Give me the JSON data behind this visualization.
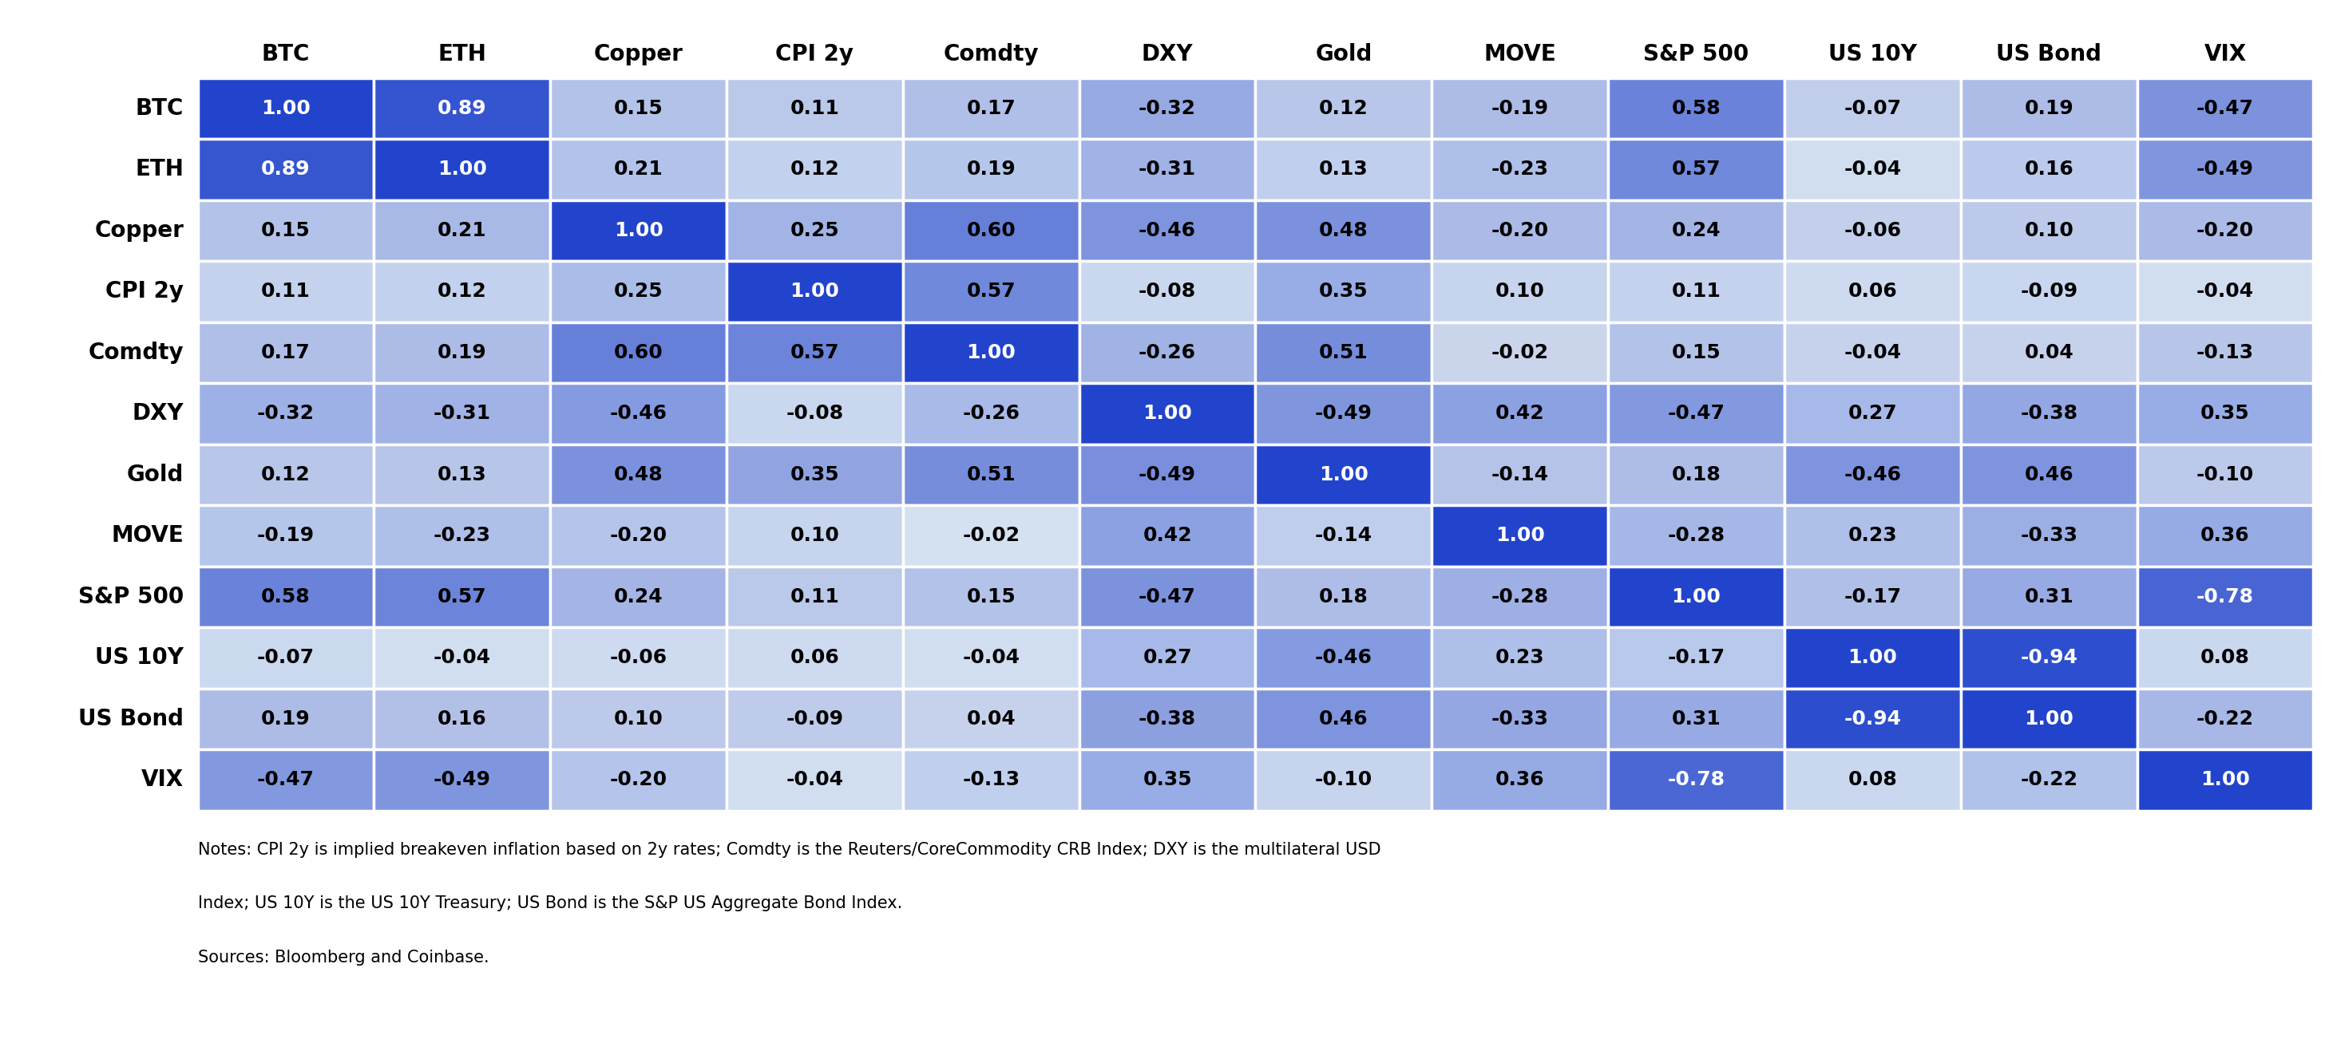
{
  "labels": [
    "BTC",
    "ETH",
    "Copper",
    "CPI 2y",
    "Comdty",
    "DXY",
    "Gold",
    "MOVE",
    "S&P 500",
    "US 10Y",
    "US Bond",
    "VIX"
  ],
  "matrix": [
    [
      1.0,
      0.89,
      0.15,
      0.11,
      0.17,
      -0.32,
      0.12,
      -0.19,
      0.58,
      -0.07,
      0.19,
      -0.47
    ],
    [
      0.89,
      1.0,
      0.21,
      0.12,
      0.19,
      -0.31,
      0.13,
      -0.23,
      0.57,
      -0.04,
      0.16,
      -0.49
    ],
    [
      0.15,
      0.21,
      1.0,
      0.25,
      0.6,
      -0.46,
      0.48,
      -0.2,
      0.24,
      -0.06,
      0.1,
      -0.2
    ],
    [
      0.11,
      0.12,
      0.25,
      1.0,
      0.57,
      -0.08,
      0.35,
      0.1,
      0.11,
      0.06,
      -0.09,
      -0.04
    ],
    [
      0.17,
      0.19,
      0.6,
      0.57,
      1.0,
      -0.26,
      0.51,
      -0.02,
      0.15,
      -0.04,
      0.04,
      -0.13
    ],
    [
      -0.32,
      -0.31,
      -0.46,
      -0.08,
      -0.26,
      1.0,
      -0.49,
      0.42,
      -0.47,
      0.27,
      -0.38,
      0.35
    ],
    [
      0.12,
      0.13,
      0.48,
      0.35,
      0.51,
      -0.49,
      1.0,
      -0.14,
      0.18,
      -0.46,
      0.46,
      -0.1
    ],
    [
      -0.19,
      -0.23,
      -0.2,
      0.1,
      -0.02,
      0.42,
      -0.14,
      1.0,
      -0.28,
      0.23,
      -0.33,
      0.36
    ],
    [
      0.58,
      0.57,
      0.24,
      0.11,
      0.15,
      -0.47,
      0.18,
      -0.28,
      1.0,
      -0.17,
      0.31,
      -0.78
    ],
    [
      -0.07,
      -0.04,
      -0.06,
      0.06,
      -0.04,
      0.27,
      -0.46,
      0.23,
      -0.17,
      1.0,
      -0.94,
      0.08
    ],
    [
      0.19,
      0.16,
      0.1,
      -0.09,
      0.04,
      -0.38,
      0.46,
      -0.33,
      0.31,
      -0.94,
      1.0,
      -0.22
    ],
    [
      -0.47,
      -0.49,
      -0.2,
      -0.04,
      -0.13,
      0.35,
      -0.1,
      0.36,
      -0.78,
      0.08,
      -0.22,
      1.0
    ]
  ],
  "col_labels": [
    "BTC",
    "ETH",
    "Copper",
    "CPI 2y",
    "Comdty",
    "DXY",
    "Gold",
    "MOVE",
    "S&P 500",
    "US 10Y",
    "US Bond",
    "VIX"
  ],
  "notes_line1": "Notes: CPI 2y is implied breakeven inflation based on 2y rates; Comdty is the Reuters/CoreCommodity CRB Index; DXY is the multilateral USD",
  "notes_line2": "Index; US 10Y is the US 10Y Treasury; US Bond is the S&P US Aggregate Bond Index.",
  "notes_line3": "Sources: Bloomberg and Coinbase.",
  "background_color": "#ffffff",
  "row_even_bg": "#dce4f0",
  "row_odd_bg": "#eaf0f8",
  "diagonal_color": "#2244cc",
  "color_high_pos": "#2244cc",
  "color_low_pos": "#b8c8e8",
  "color_high_neg": "#aabde0",
  "color_low_neg": "#d8e2f0",
  "text_color_dark": "#000000",
  "text_color_light": "#ffffff",
  "header_fontsize": 20,
  "cell_fontsize": 18,
  "row_label_fontsize": 20,
  "notes_fontsize": 15
}
